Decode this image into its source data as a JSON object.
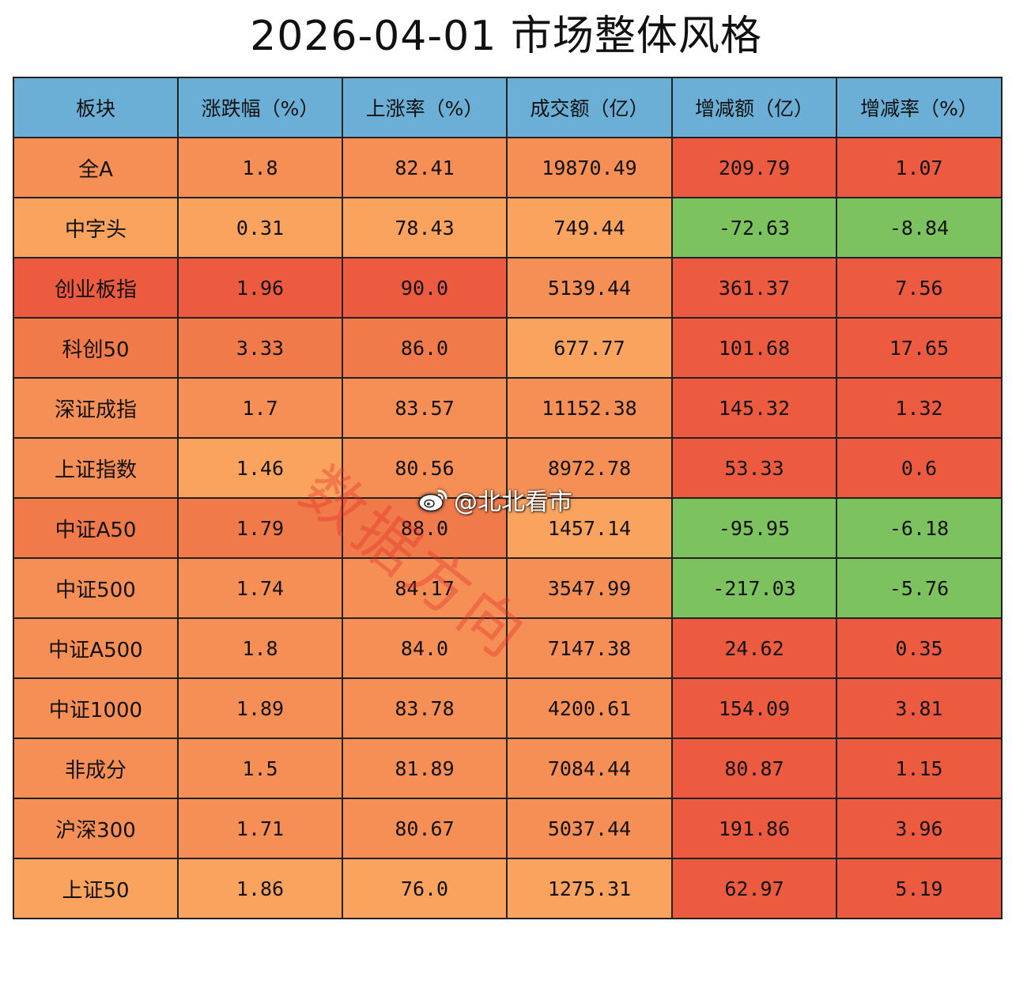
{
  "title": "2026-04-01  市场整体风格",
  "watermark": {
    "seal_text": "数据方向",
    "weibo_text": "@北北看市",
    "weibo_icon": "weibo-logo-icon"
  },
  "colors": {
    "header": "#6baed6",
    "red": "#ec5b3f",
    "orange_strong": "#f07a4a",
    "orange": "#f58f55",
    "orange_light": "#f9a35e",
    "green": "#7cc35f"
  },
  "chart_data": {
    "type": "table",
    "title": "2026-04-01  市场整体风格",
    "columns": [
      "板块",
      "涨跌幅（%）",
      "上涨率（%）",
      "成交额（亿）",
      "增减额（亿）",
      "增减率（%）"
    ],
    "rows": [
      {
        "name": "全A",
        "change_pct": "1.8",
        "up_ratio": "82.41",
        "turnover": "19870.49",
        "delta_amount": "209.79",
        "delta_pct": "1.07"
      },
      {
        "name": "中字头",
        "change_pct": "0.31",
        "up_ratio": "78.43",
        "turnover": "749.44",
        "delta_amount": "-72.63",
        "delta_pct": "-8.84"
      },
      {
        "name": "创业板指",
        "change_pct": "1.96",
        "up_ratio": "90.0",
        "turnover": "5139.44",
        "delta_amount": "361.37",
        "delta_pct": "7.56"
      },
      {
        "name": "科创50",
        "change_pct": "3.33",
        "up_ratio": "86.0",
        "turnover": "677.77",
        "delta_amount": "101.68",
        "delta_pct": "17.65"
      },
      {
        "name": "深证成指",
        "change_pct": "1.7",
        "up_ratio": "83.57",
        "turnover": "11152.38",
        "delta_amount": "145.32",
        "delta_pct": "1.32"
      },
      {
        "name": "上证指数",
        "change_pct": "1.46",
        "up_ratio": "80.56",
        "turnover": "8972.78",
        "delta_amount": "53.33",
        "delta_pct": "0.6"
      },
      {
        "name": "中证A50",
        "change_pct": "1.79",
        "up_ratio": "88.0",
        "turnover": "1457.14",
        "delta_amount": "-95.95",
        "delta_pct": "-6.18"
      },
      {
        "name": "中证500",
        "change_pct": "1.74",
        "up_ratio": "84.17",
        "turnover": "3547.99",
        "delta_amount": "-217.03",
        "delta_pct": "-5.76"
      },
      {
        "name": "中证A500",
        "change_pct": "1.8",
        "up_ratio": "84.0",
        "turnover": "7147.38",
        "delta_amount": "24.62",
        "delta_pct": "0.35"
      },
      {
        "name": "中证1000",
        "change_pct": "1.89",
        "up_ratio": "83.78",
        "turnover": "4200.61",
        "delta_amount": "154.09",
        "delta_pct": "3.81"
      },
      {
        "name": "非成分",
        "change_pct": "1.5",
        "up_ratio": "81.89",
        "turnover": "7084.44",
        "delta_amount": "80.87",
        "delta_pct": "1.15"
      },
      {
        "name": "沪深300",
        "change_pct": "1.71",
        "up_ratio": "80.67",
        "turnover": "5037.44",
        "delta_amount": "191.86",
        "delta_pct": "3.96"
      },
      {
        "name": "上证50",
        "change_pct": "1.86",
        "up_ratio": "76.0",
        "turnover": "1275.31",
        "delta_amount": "62.97",
        "delta_pct": "5.19"
      }
    ],
    "cell_colors": [
      [
        "orange",
        "orange",
        "orange",
        "orange",
        "red",
        "red"
      ],
      [
        "orange_light",
        "orange_light",
        "orange_light",
        "orange_light",
        "green",
        "green"
      ],
      [
        "red",
        "red",
        "red",
        "orange",
        "red",
        "red"
      ],
      [
        "orange_strong",
        "orange_strong",
        "orange_strong",
        "orange_light",
        "red",
        "red"
      ],
      [
        "orange",
        "orange",
        "orange",
        "orange",
        "red",
        "red"
      ],
      [
        "orange",
        "orange_light",
        "orange",
        "orange",
        "red",
        "red"
      ],
      [
        "orange_strong",
        "orange_strong",
        "orange_strong",
        "orange_light",
        "green",
        "green"
      ],
      [
        "orange",
        "orange",
        "orange",
        "orange",
        "green",
        "green"
      ],
      [
        "orange",
        "orange",
        "orange",
        "orange",
        "red",
        "red"
      ],
      [
        "orange",
        "orange",
        "orange",
        "orange",
        "red",
        "red"
      ],
      [
        "orange",
        "orange",
        "orange",
        "orange",
        "red",
        "red"
      ],
      [
        "orange",
        "orange",
        "orange",
        "orange",
        "red",
        "red"
      ],
      [
        "orange_light",
        "orange_light",
        "orange_light",
        "orange_light",
        "red",
        "red"
      ]
    ]
  }
}
